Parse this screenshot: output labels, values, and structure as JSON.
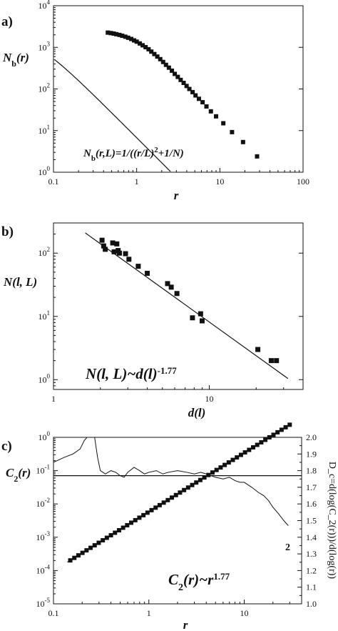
{
  "chart_data": [
    {
      "panel": "a)",
      "type": "line",
      "ylabel_main": "N",
      "ylabel_sub": "b",
      "ylabel_tail": "(r)",
      "xlabel": "r",
      "xscale": "log",
      "yscale": "log",
      "xlim": [
        0.1,
        100
      ],
      "ylim": [
        1,
        10000
      ],
      "xticks": [
        {
          "v": 0.1,
          "t": "0.1"
        },
        {
          "v": 1,
          "t": "1"
        },
        {
          "v": 10,
          "t": "10"
        },
        {
          "v": 100,
          "t": "100"
        }
      ],
      "yticks": [
        {
          "v": 1,
          "b": "10",
          "e": "0"
        },
        {
          "v": 10,
          "b": "10",
          "e": "1"
        },
        {
          "v": 100,
          "b": "10",
          "e": "2"
        },
        {
          "v": 1000,
          "b": "10",
          "e": "3"
        },
        {
          "v": 10000,
          "b": "10",
          "e": "4"
        }
      ],
      "annotation": {
        "p1": "N",
        "p2": "b",
        "p3": "(r,L)=1/((r/L)",
        "p4": "2",
        "p5": "+1/N)"
      },
      "model": {
        "N": 2500,
        "L": 2.6
      },
      "points": [
        [
          0.45,
          2260
        ],
        [
          0.49,
          2200
        ],
        [
          0.53,
          2140
        ],
        [
          0.57,
          2070
        ],
        [
          0.62,
          1990
        ],
        [
          0.67,
          1900
        ],
        [
          0.73,
          1800
        ],
        [
          0.79,
          1700
        ],
        [
          0.86,
          1590
        ],
        [
          0.93,
          1470
        ],
        [
          1.0,
          1370
        ],
        [
          1.09,
          1240
        ],
        [
          1.18,
          1120
        ],
        [
          1.28,
          1010
        ],
        [
          1.39,
          900
        ],
        [
          1.5,
          790
        ],
        [
          1.63,
          690
        ],
        [
          1.77,
          600
        ],
        [
          1.92,
          520
        ],
        [
          2.08,
          445
        ],
        [
          2.25,
          380
        ],
        [
          2.44,
          325
        ],
        [
          2.65,
          275
        ],
        [
          2.87,
          230
        ],
        [
          3.12,
          195
        ],
        [
          3.38,
          165
        ],
        [
          3.67,
          140
        ],
        [
          3.98,
          118
        ],
        [
          4.3,
          100
        ],
        [
          4.7,
          84
        ],
        [
          5.1,
          70
        ],
        [
          5.6,
          58
        ],
        [
          6.2,
          48
        ],
        [
          6.9,
          38
        ],
        [
          7.8,
          29
        ],
        [
          9.0,
          22
        ],
        [
          11.0,
          15
        ],
        [
          14.0,
          9.2
        ],
        [
          19.0,
          5.3
        ],
        [
          28.0,
          2.4
        ]
      ]
    },
    {
      "panel": "b)",
      "type": "scatter",
      "ylabel": "N(l, L)",
      "xlabel": "d(l)",
      "xscale": "log",
      "yscale": "log",
      "xlim": [
        1,
        40
      ],
      "ylim": [
        0.7,
        300
      ],
      "xticks": [
        {
          "v": 1,
          "t": "1"
        },
        {
          "v": 10,
          "t": "10"
        }
      ],
      "yticks": [
        {
          "v": 1,
          "b": "10",
          "e": "0"
        },
        {
          "v": 10,
          "b": "10",
          "e": "1"
        },
        {
          "v": 100,
          "b": "10",
          "e": "2"
        }
      ],
      "annotation": {
        "p1": "N(l, L)~d(l)",
        "p2": "-1.77"
      },
      "fit": {
        "A": 480,
        "exponent": -1.77,
        "x_range": [
          1.6,
          32
        ]
      },
      "points": [
        [
          2.05,
          160
        ],
        [
          2.1,
          130
        ],
        [
          2.15,
          115
        ],
        [
          2.4,
          145
        ],
        [
          2.55,
          140
        ],
        [
          2.45,
          105
        ],
        [
          2.6,
          110
        ],
        [
          2.65,
          100
        ],
        [
          2.9,
          98
        ],
        [
          3.05,
          80
        ],
        [
          3.5,
          62
        ],
        [
          4.0,
          48
        ],
        [
          5.4,
          33
        ],
        [
          5.7,
          29
        ],
        [
          6.2,
          23
        ],
        [
          7.8,
          9.5
        ],
        [
          8.8,
          11
        ],
        [
          9.0,
          8.5
        ],
        [
          20.5,
          3.0
        ],
        [
          25,
          2.0
        ],
        [
          27,
          2.0
        ]
      ]
    },
    {
      "panel": "c)",
      "type": "scatter",
      "ylabel_main": "C",
      "ylabel_sub": "2",
      "ylabel_tail": "(r)",
      "ylabel_right": "D_c=d(log(C_2(r)))/d(log(r))",
      "xlabel": "r",
      "xscale": "log",
      "yscale": "log",
      "xlim": [
        0.1,
        40
      ],
      "ylim": [
        1e-05,
        1
      ],
      "y2lim": [
        1.0,
        2.0
      ],
      "xticks": [
        {
          "v": 0.1,
          "t": "0.1"
        },
        {
          "v": 1,
          "t": "1"
        },
        {
          "v": 10,
          "t": "10"
        }
      ],
      "yticks": [
        {
          "v": 1e-05,
          "b": "10",
          "e": "-5"
        },
        {
          "v": 0.0001,
          "b": "10",
          "e": "-4"
        },
        {
          "v": 0.001,
          "b": "10",
          "e": "-3"
        },
        {
          "v": 0.01,
          "b": "10",
          "e": "-2"
        },
        {
          "v": 0.1,
          "b": "10",
          "e": "-1"
        },
        {
          "v": 1,
          "b": "10",
          "e": "0"
        }
      ],
      "y2ticks": [
        "1.0",
        "1.1",
        "1.2",
        "1.3",
        "1.4",
        "1.5",
        "1.6",
        "1.7",
        "1.8",
        "1.9",
        "2.0"
      ],
      "annotation": {
        "p1": "C",
        "p2": "2",
        "p3": "(r)~r",
        "p4": "1.77"
      },
      "curve_label": "2",
      "power_law": {
        "A": 0.0058,
        "exponent": 1.77,
        "x_range": [
          0.15,
          30
        ],
        "n_points": 55
      },
      "fit_line_x_range": [
        0.14,
        40
      ],
      "hline_right": 1.77,
      "slope_curve": [
        [
          0.1,
          1.85
        ],
        [
          0.13,
          1.88
        ],
        [
          0.16,
          1.9
        ],
        [
          0.19,
          1.93
        ],
        [
          0.21,
          1.98
        ],
        [
          0.24,
          2.02
        ],
        [
          0.27,
          2.0
        ],
        [
          0.29,
          1.88
        ],
        [
          0.31,
          1.8
        ],
        [
          0.35,
          1.78
        ],
        [
          0.4,
          1.8
        ],
        [
          0.45,
          1.79
        ],
        [
          0.5,
          1.77
        ],
        [
          0.55,
          1.76
        ],
        [
          0.6,
          1.79
        ],
        [
          0.7,
          1.82
        ],
        [
          0.8,
          1.8
        ],
        [
          0.9,
          1.78
        ],
        [
          1.0,
          1.79
        ],
        [
          1.2,
          1.8
        ],
        [
          1.4,
          1.78
        ],
        [
          1.6,
          1.79
        ],
        [
          2.0,
          1.8
        ],
        [
          2.5,
          1.79
        ],
        [
          3.0,
          1.78
        ],
        [
          3.5,
          1.79
        ],
        [
          4.0,
          1.78
        ],
        [
          5.0,
          1.76
        ],
        [
          6.0,
          1.75
        ],
        [
          7.0,
          1.76
        ],
        [
          8.0,
          1.74
        ],
        [
          9.0,
          1.73
        ],
        [
          10.0,
          1.73
        ],
        [
          12.0,
          1.7
        ],
        [
          14.0,
          1.67
        ],
        [
          16.0,
          1.65
        ],
        [
          18.0,
          1.62
        ],
        [
          20.0,
          1.58
        ],
        [
          23.0,
          1.54
        ],
        [
          26.0,
          1.5
        ],
        [
          29.0,
          1.47
        ]
      ]
    }
  ]
}
